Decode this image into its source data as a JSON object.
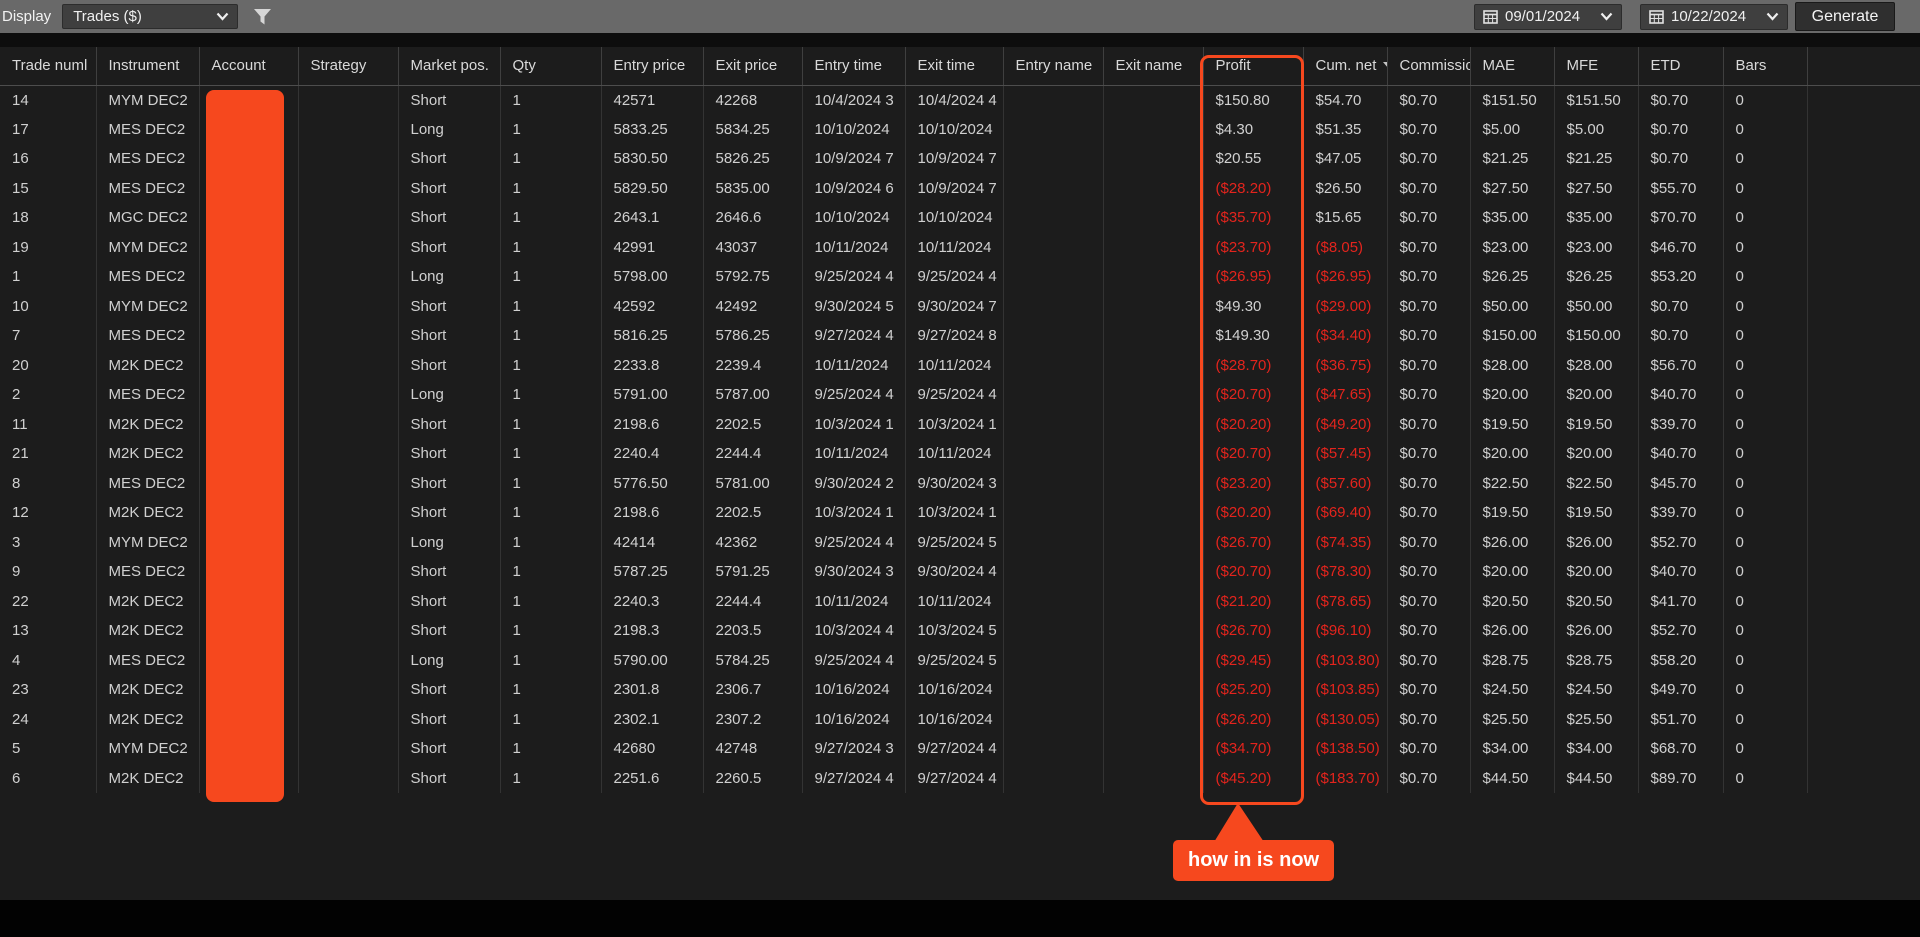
{
  "toolbar": {
    "display_label": "Display",
    "display_select": {
      "value": "Trades ($)"
    },
    "date_from": "09/01/2024",
    "date_to": "10/22/2024",
    "generate_label": "Generate"
  },
  "annotation": {
    "label": "how in is now"
  },
  "colors": {
    "accent_orange": "#f6481e",
    "negative_red": "#e3241d"
  },
  "table": {
    "columns": [
      {
        "key": "trade_number",
        "label": "Trade numl"
      },
      {
        "key": "instrument",
        "label": "Instrument"
      },
      {
        "key": "account",
        "label": "Account"
      },
      {
        "key": "strategy",
        "label": "Strategy"
      },
      {
        "key": "market_pos",
        "label": "Market pos."
      },
      {
        "key": "qty",
        "label": "Qty"
      },
      {
        "key": "entry_price",
        "label": "Entry price"
      },
      {
        "key": "exit_price",
        "label": "Exit price"
      },
      {
        "key": "entry_time",
        "label": "Entry time"
      },
      {
        "key": "exit_time",
        "label": "Exit time"
      },
      {
        "key": "entry_name",
        "label": "Entry name"
      },
      {
        "key": "exit_name",
        "label": "Exit name"
      },
      {
        "key": "profit",
        "label": "Profit"
      },
      {
        "key": "cum_net",
        "label": "Cum. net",
        "sort": "desc"
      },
      {
        "key": "commission",
        "label": "Commissio"
      },
      {
        "key": "mae",
        "label": "MAE"
      },
      {
        "key": "mfe",
        "label": "MFE"
      },
      {
        "key": "etd",
        "label": "ETD"
      },
      {
        "key": "bars",
        "label": "Bars"
      }
    ],
    "rows": [
      {
        "trade_number": "14",
        "instrument": "MYM DEC2",
        "account": "",
        "strategy": "",
        "market_pos": "Short",
        "qty": "1",
        "entry_price": "42571",
        "exit_price": "42268",
        "entry_time": "10/4/2024 3",
        "exit_time": "10/4/2024 4",
        "entry_name": "",
        "exit_name": "",
        "profit": "$150.80",
        "cum_net": "$54.70",
        "commission": "$0.70",
        "mae": "$151.50",
        "mfe": "$151.50",
        "etd": "$0.70",
        "bars": "0"
      },
      {
        "trade_number": "17",
        "instrument": "MES DEC2",
        "account": "",
        "strategy": "",
        "market_pos": "Long",
        "qty": "1",
        "entry_price": "5833.25",
        "exit_price": "5834.25",
        "entry_time": "10/10/2024",
        "exit_time": "10/10/2024",
        "entry_name": "",
        "exit_name": "",
        "profit": "$4.30",
        "cum_net": "$51.35",
        "commission": "$0.70",
        "mae": "$5.00",
        "mfe": "$5.00",
        "etd": "$0.70",
        "bars": "0"
      },
      {
        "trade_number": "16",
        "instrument": "MES DEC2",
        "account": "",
        "strategy": "",
        "market_pos": "Short",
        "qty": "1",
        "entry_price": "5830.50",
        "exit_price": "5826.25",
        "entry_time": "10/9/2024 7",
        "exit_time": "10/9/2024 7",
        "entry_name": "",
        "exit_name": "",
        "profit": "$20.55",
        "cum_net": "$47.05",
        "commission": "$0.70",
        "mae": "$21.25",
        "mfe": "$21.25",
        "etd": "$0.70",
        "bars": "0"
      },
      {
        "trade_number": "15",
        "instrument": "MES DEC2",
        "account": "",
        "strategy": "",
        "market_pos": "Short",
        "qty": "1",
        "entry_price": "5829.50",
        "exit_price": "5835.00",
        "entry_time": "10/9/2024 6",
        "exit_time": "10/9/2024 7",
        "entry_name": "",
        "exit_name": "",
        "profit": "($28.20)",
        "cum_net": "$26.50",
        "commission": "$0.70",
        "mae": "$27.50",
        "mfe": "$27.50",
        "etd": "$55.70",
        "bars": "0"
      },
      {
        "trade_number": "18",
        "instrument": "MGC DEC2",
        "account": "",
        "strategy": "",
        "market_pos": "Short",
        "qty": "1",
        "entry_price": "2643.1",
        "exit_price": "2646.6",
        "entry_time": "10/10/2024",
        "exit_time": "10/10/2024",
        "entry_name": "",
        "exit_name": "",
        "profit": "($35.70)",
        "cum_net": "$15.65",
        "commission": "$0.70",
        "mae": "$35.00",
        "mfe": "$35.00",
        "etd": "$70.70",
        "bars": "0"
      },
      {
        "trade_number": "19",
        "instrument": "MYM DEC2",
        "account": "",
        "strategy": "",
        "market_pos": "Short",
        "qty": "1",
        "entry_price": "42991",
        "exit_price": "43037",
        "entry_time": "10/11/2024",
        "exit_time": "10/11/2024",
        "entry_name": "",
        "exit_name": "",
        "profit": "($23.70)",
        "cum_net": "($8.05)",
        "commission": "$0.70",
        "mae": "$23.00",
        "mfe": "$23.00",
        "etd": "$46.70",
        "bars": "0"
      },
      {
        "trade_number": "1",
        "instrument": "MES DEC2",
        "account": "",
        "strategy": "",
        "market_pos": "Long",
        "qty": "1",
        "entry_price": "5798.00",
        "exit_price": "5792.75",
        "entry_time": "9/25/2024 4",
        "exit_time": "9/25/2024 4",
        "entry_name": "",
        "exit_name": "",
        "profit": "($26.95)",
        "cum_net": "($26.95)",
        "commission": "$0.70",
        "mae": "$26.25",
        "mfe": "$26.25",
        "etd": "$53.20",
        "bars": "0"
      },
      {
        "trade_number": "10",
        "instrument": "MYM DEC2",
        "account": "",
        "strategy": "",
        "market_pos": "Short",
        "qty": "1",
        "entry_price": "42592",
        "exit_price": "42492",
        "entry_time": "9/30/2024 5",
        "exit_time": "9/30/2024 7",
        "entry_name": "",
        "exit_name": "",
        "profit": "$49.30",
        "cum_net": "($29.00)",
        "commission": "$0.70",
        "mae": "$50.00",
        "mfe": "$50.00",
        "etd": "$0.70",
        "bars": "0"
      },
      {
        "trade_number": "7",
        "instrument": "MES DEC2",
        "account": "",
        "strategy": "",
        "market_pos": "Short",
        "qty": "1",
        "entry_price": "5816.25",
        "exit_price": "5786.25",
        "entry_time": "9/27/2024 4",
        "exit_time": "9/27/2024 8",
        "entry_name": "",
        "exit_name": "",
        "profit": "$149.30",
        "cum_net": "($34.40)",
        "commission": "$0.70",
        "mae": "$150.00",
        "mfe": "$150.00",
        "etd": "$0.70",
        "bars": "0"
      },
      {
        "trade_number": "20",
        "instrument": "M2K DEC2",
        "account": "",
        "strategy": "",
        "market_pos": "Short",
        "qty": "1",
        "entry_price": "2233.8",
        "exit_price": "2239.4",
        "entry_time": "10/11/2024",
        "exit_time": "10/11/2024",
        "entry_name": "",
        "exit_name": "",
        "profit": "($28.70)",
        "cum_net": "($36.75)",
        "commission": "$0.70",
        "mae": "$28.00",
        "mfe": "$28.00",
        "etd": "$56.70",
        "bars": "0"
      },
      {
        "trade_number": "2",
        "instrument": "MES DEC2",
        "account": "",
        "strategy": "",
        "market_pos": "Long",
        "qty": "1",
        "entry_price": "5791.00",
        "exit_price": "5787.00",
        "entry_time": "9/25/2024 4",
        "exit_time": "9/25/2024 4",
        "entry_name": "",
        "exit_name": "",
        "profit": "($20.70)",
        "cum_net": "($47.65)",
        "commission": "$0.70",
        "mae": "$20.00",
        "mfe": "$20.00",
        "etd": "$40.70",
        "bars": "0"
      },
      {
        "trade_number": "11",
        "instrument": "M2K DEC2",
        "account": "",
        "strategy": "",
        "market_pos": "Short",
        "qty": "1",
        "entry_price": "2198.6",
        "exit_price": "2202.5",
        "entry_time": "10/3/2024 1",
        "exit_time": "10/3/2024 1",
        "entry_name": "",
        "exit_name": "",
        "profit": "($20.20)",
        "cum_net": "($49.20)",
        "commission": "$0.70",
        "mae": "$19.50",
        "mfe": "$19.50",
        "etd": "$39.70",
        "bars": "0"
      },
      {
        "trade_number": "21",
        "instrument": "M2K DEC2",
        "account": "",
        "strategy": "",
        "market_pos": "Short",
        "qty": "1",
        "entry_price": "2240.4",
        "exit_price": "2244.4",
        "entry_time": "10/11/2024",
        "exit_time": "10/11/2024",
        "entry_name": "",
        "exit_name": "",
        "profit": "($20.70)",
        "cum_net": "($57.45)",
        "commission": "$0.70",
        "mae": "$20.00",
        "mfe": "$20.00",
        "etd": "$40.70",
        "bars": "0"
      },
      {
        "trade_number": "8",
        "instrument": "MES DEC2",
        "account": "",
        "strategy": "",
        "market_pos": "Short",
        "qty": "1",
        "entry_price": "5776.50",
        "exit_price": "5781.00",
        "entry_time": "9/30/2024 2",
        "exit_time": "9/30/2024 3",
        "entry_name": "",
        "exit_name": "",
        "profit": "($23.20)",
        "cum_net": "($57.60)",
        "commission": "$0.70",
        "mae": "$22.50",
        "mfe": "$22.50",
        "etd": "$45.70",
        "bars": "0"
      },
      {
        "trade_number": "12",
        "instrument": "M2K DEC2",
        "account": "",
        "strategy": "",
        "market_pos": "Short",
        "qty": "1",
        "entry_price": "2198.6",
        "exit_price": "2202.5",
        "entry_time": "10/3/2024 1",
        "exit_time": "10/3/2024 1",
        "entry_name": "",
        "exit_name": "",
        "profit": "($20.20)",
        "cum_net": "($69.40)",
        "commission": "$0.70",
        "mae": "$19.50",
        "mfe": "$19.50",
        "etd": "$39.70",
        "bars": "0"
      },
      {
        "trade_number": "3",
        "instrument": "MYM DEC2",
        "account": "",
        "strategy": "",
        "market_pos": "Long",
        "qty": "1",
        "entry_price": "42414",
        "exit_price": "42362",
        "entry_time": "9/25/2024 4",
        "exit_time": "9/25/2024 5",
        "entry_name": "",
        "exit_name": "",
        "profit": "($26.70)",
        "cum_net": "($74.35)",
        "commission": "$0.70",
        "mae": "$26.00",
        "mfe": "$26.00",
        "etd": "$52.70",
        "bars": "0"
      },
      {
        "trade_number": "9",
        "instrument": "MES DEC2",
        "account": "",
        "strategy": "",
        "market_pos": "Short",
        "qty": "1",
        "entry_price": "5787.25",
        "exit_price": "5791.25",
        "entry_time": "9/30/2024 3",
        "exit_time": "9/30/2024 4",
        "entry_name": "",
        "exit_name": "",
        "profit": "($20.70)",
        "cum_net": "($78.30)",
        "commission": "$0.70",
        "mae": "$20.00",
        "mfe": "$20.00",
        "etd": "$40.70",
        "bars": "0"
      },
      {
        "trade_number": "22",
        "instrument": "M2K DEC2",
        "account": "",
        "strategy": "",
        "market_pos": "Short",
        "qty": "1",
        "entry_price": "2240.3",
        "exit_price": "2244.4",
        "entry_time": "10/11/2024",
        "exit_time": "10/11/2024",
        "entry_name": "",
        "exit_name": "",
        "profit": "($21.20)",
        "cum_net": "($78.65)",
        "commission": "$0.70",
        "mae": "$20.50",
        "mfe": "$20.50",
        "etd": "$41.70",
        "bars": "0"
      },
      {
        "trade_number": "13",
        "instrument": "M2K DEC2",
        "account": "",
        "strategy": "",
        "market_pos": "Short",
        "qty": "1",
        "entry_price": "2198.3",
        "exit_price": "2203.5",
        "entry_time": "10/3/2024 4",
        "exit_time": "10/3/2024 5",
        "entry_name": "",
        "exit_name": "",
        "profit": "($26.70)",
        "cum_net": "($96.10)",
        "commission": "$0.70",
        "mae": "$26.00",
        "mfe": "$26.00",
        "etd": "$52.70",
        "bars": "0"
      },
      {
        "trade_number": "4",
        "instrument": "MES DEC2",
        "account": "",
        "strategy": "",
        "market_pos": "Long",
        "qty": "1",
        "entry_price": "5790.00",
        "exit_price": "5784.25",
        "entry_time": "9/25/2024 4",
        "exit_time": "9/25/2024 5",
        "entry_name": "",
        "exit_name": "",
        "profit": "($29.45)",
        "cum_net": "($103.80)",
        "commission": "$0.70",
        "mae": "$28.75",
        "mfe": "$28.75",
        "etd": "$58.20",
        "bars": "0"
      },
      {
        "trade_number": "23",
        "instrument": "M2K DEC2",
        "account": "",
        "strategy": "",
        "market_pos": "Short",
        "qty": "1",
        "entry_price": "2301.8",
        "exit_price": "2306.7",
        "entry_time": "10/16/2024",
        "exit_time": "10/16/2024",
        "entry_name": "",
        "exit_name": "",
        "profit": "($25.20)",
        "cum_net": "($103.85)",
        "commission": "$0.70",
        "mae": "$24.50",
        "mfe": "$24.50",
        "etd": "$49.70",
        "bars": "0"
      },
      {
        "trade_number": "24",
        "instrument": "M2K DEC2",
        "account": "",
        "strategy": "",
        "market_pos": "Short",
        "qty": "1",
        "entry_price": "2302.1",
        "exit_price": "2307.2",
        "entry_time": "10/16/2024",
        "exit_time": "10/16/2024",
        "entry_name": "",
        "exit_name": "",
        "profit": "($26.20)",
        "cum_net": "($130.05)",
        "commission": "$0.70",
        "mae": "$25.50",
        "mfe": "$25.50",
        "etd": "$51.70",
        "bars": "0"
      },
      {
        "trade_number": "5",
        "instrument": "MYM DEC2",
        "account": "",
        "strategy": "",
        "market_pos": "Short",
        "qty": "1",
        "entry_price": "42680",
        "exit_price": "42748",
        "entry_time": "9/27/2024 3",
        "exit_time": "9/27/2024 4",
        "entry_name": "",
        "exit_name": "",
        "profit": "($34.70)",
        "cum_net": "($138.50)",
        "commission": "$0.70",
        "mae": "$34.00",
        "mfe": "$34.00",
        "etd": "$68.70",
        "bars": "0"
      },
      {
        "trade_number": "6",
        "instrument": "M2K DEC2",
        "account": "",
        "strategy": "",
        "market_pos": "Short",
        "qty": "1",
        "entry_price": "2251.6",
        "exit_price": "2260.5",
        "entry_time": "9/27/2024 4",
        "exit_time": "9/27/2024 4",
        "entry_name": "",
        "exit_name": "",
        "profit": "($45.20)",
        "cum_net": "($183.70)",
        "commission": "$0.70",
        "mae": "$44.50",
        "mfe": "$44.50",
        "etd": "$89.70",
        "bars": "0"
      }
    ]
  }
}
